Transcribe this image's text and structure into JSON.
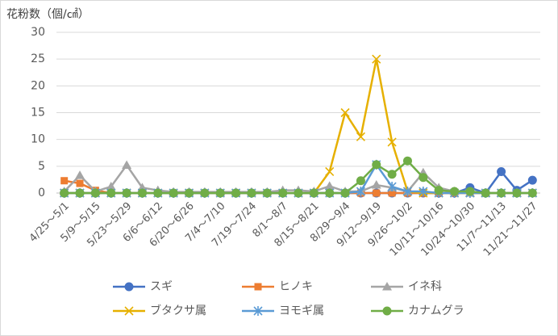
{
  "chart_data": {
    "type": "line",
    "title": "花粉数（個/㎠）",
    "categories": [
      "4/25～5/1",
      null,
      "5/9～5/15",
      null,
      "5/23～5/29",
      null,
      "6/6～6/12",
      null,
      "6/20～6/26",
      null,
      "7/4～7/10",
      null,
      "7/19～7/24",
      null,
      "8/1～8/7",
      null,
      "8/15～8/21",
      null,
      "8/29～9/4",
      null,
      "9/12～9/19",
      null,
      "9/26～10/2",
      null,
      "10/11～10/16",
      null,
      "10/24～10/30",
      null,
      "11/7～11/13",
      null,
      "11/21～11/27"
    ],
    "series": [
      {
        "name": "スギ",
        "color": "#4472c4",
        "marker": "circle",
        "values": [
          0,
          0,
          0,
          0,
          0,
          0,
          0,
          0,
          0,
          0,
          0,
          0,
          0,
          0,
          0,
          0,
          0,
          0,
          0,
          0,
          0,
          0,
          0,
          0,
          0,
          0,
          1,
          0,
          4,
          0.5,
          2.4
        ]
      },
      {
        "name": "ヒノキ",
        "color": "#ed7d31",
        "marker": "square",
        "values": [
          2.3,
          1.8,
          0.5,
          0,
          0,
          0,
          0,
          0,
          0,
          0,
          0,
          0,
          0,
          0,
          0,
          0,
          0,
          0,
          0,
          0,
          0,
          0,
          0,
          0,
          0,
          0,
          0,
          0,
          0,
          0,
          0
        ]
      },
      {
        "name": "イネ科",
        "color": "#a5a5a5",
        "marker": "triangle",
        "values": [
          0.3,
          3.3,
          0.3,
          1.2,
          5.2,
          1,
          0.5,
          0.2,
          0.2,
          0.2,
          0.2,
          0.2,
          0.2,
          0.2,
          0.5,
          0.5,
          0.3,
          1.3,
          0.3,
          0.3,
          1.5,
          1,
          0.3,
          3.8,
          1,
          0.3,
          0,
          0,
          0,
          0,
          0
        ]
      },
      {
        "name": "ブタクサ属",
        "color": "#e6b000",
        "marker": "x",
        "values": [
          0,
          0,
          0,
          0,
          0,
          0,
          0,
          0,
          0,
          0,
          0,
          0,
          0,
          0,
          0,
          0,
          0,
          4,
          15,
          10.5,
          25,
          9.5,
          0.3,
          0,
          0,
          0,
          0,
          0,
          0,
          0,
          0
        ]
      },
      {
        "name": "ヨモギ属",
        "color": "#5b9bd5",
        "marker": "star",
        "values": [
          0,
          0,
          0,
          0,
          0,
          0,
          0,
          0,
          0,
          0,
          0,
          0,
          0,
          0,
          0,
          0,
          0,
          0,
          0,
          0.3,
          5.3,
          1.2,
          0.3,
          0.3,
          0,
          0,
          0,
          0,
          0,
          0,
          0
        ]
      },
      {
        "name": "カナムグラ",
        "color": "#70ad47",
        "marker": "circle",
        "values": [
          0,
          0,
          0,
          0,
          0,
          0,
          0,
          0,
          0,
          0,
          0,
          0,
          0,
          0,
          0,
          0,
          0,
          0,
          0,
          2.3,
          5.3,
          3.5,
          6,
          2.9,
          0.5,
          0.3,
          0.3,
          0,
          0,
          0,
          0
        ]
      }
    ],
    "ylim": [
      0,
      30
    ],
    "yticks": [
      0,
      5,
      10,
      15,
      20,
      25,
      30
    ],
    "grid": true,
    "legend": "bottom"
  }
}
